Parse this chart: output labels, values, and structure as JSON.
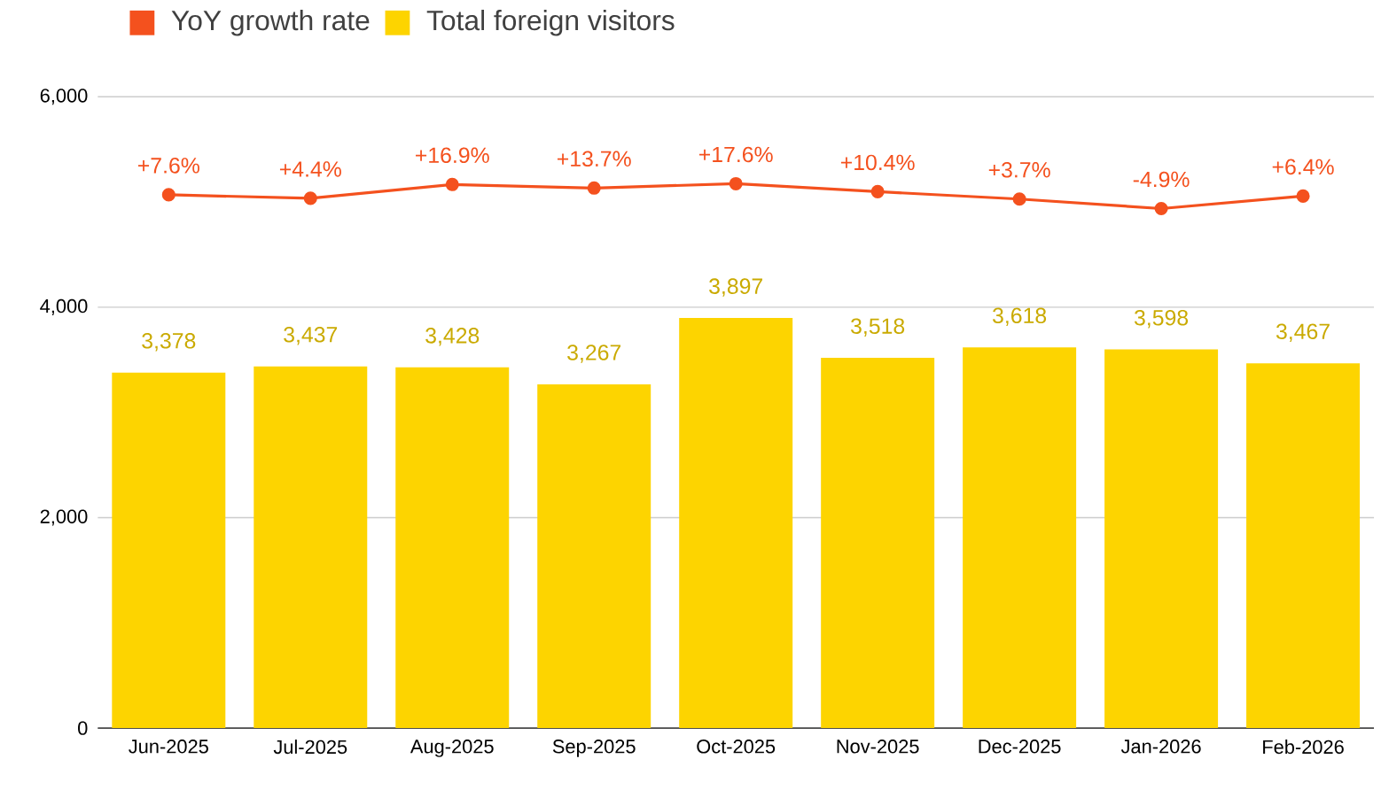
{
  "chart_data": {
    "type": "bar",
    "categories": [
      "Jun-2025",
      "Jul-2025",
      "Aug-2025",
      "Sep-2025",
      "Oct-2025",
      "Nov-2025",
      "Dec-2025",
      "Jan-2026",
      "Feb-2026"
    ],
    "series": [
      {
        "name": "YoY growth rate",
        "type": "line",
        "axis": "y2",
        "color": "#f4511e",
        "marker": "circle",
        "values": [
          7.6,
          4.4,
          16.9,
          13.7,
          17.6,
          10.4,
          3.7,
          -4.9,
          6.4
        ],
        "value_labels": [
          "+7.6%",
          "+4.4%",
          "+16.9%",
          "+13.7%",
          "+17.6%",
          "+10.4%",
          "+3.7%",
          "-4.9%",
          "+6.4%"
        ]
      },
      {
        "name": "Total foreign visitors",
        "color": "#fdd400",
        "values": [
          3378,
          3437,
          3428,
          3267,
          3897,
          3518,
          3618,
          3598,
          3467
        ],
        "value_labels": [
          "3,378",
          "3,437",
          "3,428",
          "3,267",
          "3,897",
          "3,518",
          "3,618",
          "3,598",
          "3,467"
        ]
      }
    ],
    "ylim": [
      0,
      6000
    ],
    "yticks": [
      0,
      {
        "value": 2000,
        "label": "2,000"
      },
      {
        "value": 4000,
        "label": "4,000"
      },
      {
        "value": 6000,
        "label": "6,000"
      }
    ],
    "grid": "y",
    "legend": "top left"
  }
}
